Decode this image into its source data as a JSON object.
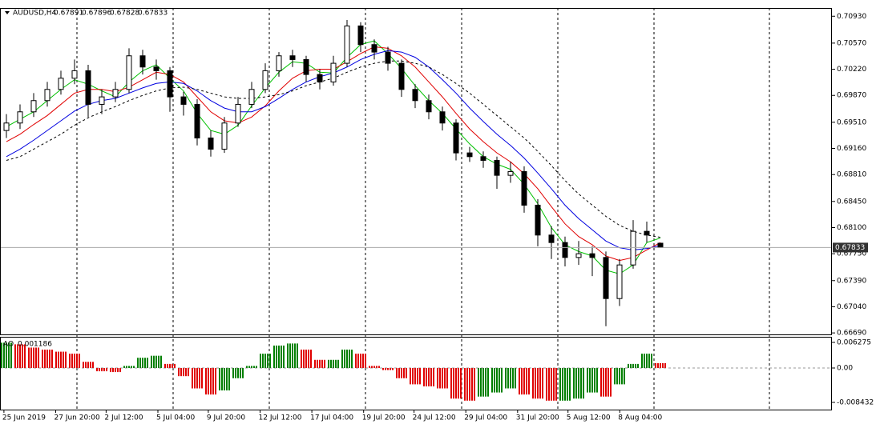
{
  "chart_data": {
    "type": "candlestick",
    "title": "AUDUSD,H4",
    "open": [
      0.694,
      0.695,
      0.6965,
      0.698,
      0.6995,
      0.701,
      0.702,
      0.6975,
      0.6985,
      0.6995,
      0.704,
      0.7025,
      0.702,
      0.6985,
      0.6975,
      0.693,
      0.6915,
      0.695,
      0.6975,
      0.6995,
      0.702,
      0.704,
      0.7035,
      0.7015,
      0.7005,
      0.703,
      0.708,
      0.7055,
      0.7045,
      0.703,
      0.6995,
      0.698,
      0.6965,
      0.695,
      0.691,
      0.6905,
      0.69,
      0.688,
      0.6885,
      0.684,
      0.68,
      0.679,
      0.677,
      0.6775,
      0.677,
      0.6715,
      0.676,
      0.6805,
      0.67891
    ],
    "high": [
      0.6962,
      0.6975,
      0.699,
      0.7005,
      0.702,
      0.7035,
      0.7028,
      0.6995,
      0.7005,
      0.705,
      0.7048,
      0.7035,
      0.7025,
      0.6992,
      0.6982,
      0.694,
      0.6958,
      0.6985,
      0.7005,
      0.703,
      0.7045,
      0.7048,
      0.704,
      0.7022,
      0.704,
      0.7088,
      0.7085,
      0.7062,
      0.7052,
      0.7035,
      0.7002,
      0.6988,
      0.6972,
      0.6955,
      0.6918,
      0.6912,
      0.6905,
      0.6898,
      0.6892,
      0.6848,
      0.6812,
      0.6798,
      0.6792,
      0.6785,
      0.6778,
      0.6768,
      0.682,
      0.6818,
      0.67896
    ],
    "low": [
      0.693,
      0.6942,
      0.6958,
      0.6972,
      0.6988,
      0.7002,
      0.6958,
      0.6962,
      0.6978,
      0.699,
      0.7015,
      0.7008,
      0.6965,
      0.696,
      0.692,
      0.6905,
      0.691,
      0.6945,
      0.697,
      0.699,
      0.7012,
      0.7025,
      0.7005,
      0.6995,
      0.7,
      0.7025,
      0.7045,
      0.7035,
      0.702,
      0.6985,
      0.697,
      0.6955,
      0.694,
      0.69,
      0.6898,
      0.689,
      0.6862,
      0.687,
      0.683,
      0.6785,
      0.6768,
      0.6758,
      0.676,
      0.6745,
      0.6678,
      0.6705,
      0.6755,
      0.679,
      0.67828
    ],
    "close": [
      0.695,
      0.6965,
      0.698,
      0.6995,
      0.701,
      0.702,
      0.6975,
      0.6985,
      0.6995,
      0.704,
      0.7025,
      0.702,
      0.6985,
      0.6975,
      0.693,
      0.6915,
      0.695,
      0.6975,
      0.6995,
      0.702,
      0.704,
      0.7035,
      0.7015,
      0.7005,
      0.703,
      0.708,
      0.7055,
      0.7045,
      0.703,
      0.6995,
      0.698,
      0.6965,
      0.695,
      0.691,
      0.6905,
      0.69,
      0.688,
      0.6885,
      0.684,
      0.68,
      0.679,
      0.677,
      0.6775,
      0.677,
      0.6715,
      0.676,
      0.6805,
      0.68,
      0.67833
    ],
    "series": [
      {
        "color": "#00c000",
        "dashed": false,
        "values": [
          0.6945,
          0.6955,
          0.6965,
          0.698,
          0.6995,
          0.7008,
          0.7002,
          0.6993,
          0.6985,
          0.7005,
          0.702,
          0.7028,
          0.701,
          0.6993,
          0.6963,
          0.694,
          0.6935,
          0.6947,
          0.6973,
          0.6997,
          0.7018,
          0.7032,
          0.703,
          0.7018,
          0.7017,
          0.7038,
          0.7055,
          0.706,
          0.7043,
          0.7023,
          0.7,
          0.698,
          0.6963,
          0.6942,
          0.6922,
          0.6905,
          0.6895,
          0.6888,
          0.6868,
          0.6842,
          0.681,
          0.6787,
          0.6778,
          0.6772,
          0.6753,
          0.6748,
          0.676,
          0.679,
          0.6796
        ]
      },
      {
        "color": "#e00000",
        "dashed": false,
        "values": [
          0.6925,
          0.6935,
          0.6948,
          0.696,
          0.6975,
          0.699,
          0.6995,
          0.6995,
          0.6992,
          0.6998,
          0.7008,
          0.7018,
          0.7015,
          0.7005,
          0.6985,
          0.6965,
          0.6953,
          0.695,
          0.6958,
          0.6973,
          0.6993,
          0.701,
          0.702,
          0.7022,
          0.7022,
          0.7032,
          0.7043,
          0.7052,
          0.705,
          0.704,
          0.7025,
          0.7005,
          0.6985,
          0.6963,
          0.6942,
          0.6925,
          0.691,
          0.6898,
          0.6882,
          0.6862,
          0.6838,
          0.6815,
          0.6798,
          0.6787,
          0.6772,
          0.6766,
          0.677,
          0.678,
          0.679
        ]
      },
      {
        "color": "#0000e0",
        "dashed": false,
        "values": [
          0.6905,
          0.6915,
          0.6927,
          0.694,
          0.6953,
          0.6966,
          0.6975,
          0.698,
          0.6983,
          0.699,
          0.6997,
          0.7003,
          0.7005,
          0.7003,
          0.6993,
          0.698,
          0.697,
          0.6965,
          0.6965,
          0.6972,
          0.6983,
          0.6995,
          0.7005,
          0.7012,
          0.7017,
          0.7025,
          0.7035,
          0.7042,
          0.7047,
          0.7045,
          0.7038,
          0.7025,
          0.7008,
          0.699,
          0.697,
          0.6952,
          0.6935,
          0.692,
          0.6903,
          0.6883,
          0.6862,
          0.684,
          0.6822,
          0.6807,
          0.6792,
          0.6783,
          0.678,
          0.6782,
          0.6786
        ]
      },
      {
        "color": "#000000",
        "dashed": true,
        "values": [
          0.69,
          0.6905,
          0.6915,
          0.6925,
          0.6935,
          0.6947,
          0.6957,
          0.6965,
          0.6972,
          0.698,
          0.6987,
          0.6993,
          0.6997,
          0.6998,
          0.6995,
          0.699,
          0.6985,
          0.6983,
          0.6983,
          0.6985,
          0.6988,
          0.6993,
          0.7,
          0.7005,
          0.701,
          0.7018,
          0.7025,
          0.703,
          0.7033,
          0.7033,
          0.703,
          0.7025,
          0.7015,
          0.7003,
          0.699,
          0.6975,
          0.696,
          0.6945,
          0.693,
          0.6912,
          0.6893,
          0.6873,
          0.6855,
          0.684,
          0.6825,
          0.6813,
          0.6805,
          0.68,
          0.6797
        ]
      }
    ],
    "ylim": [
      0.6667,
      0.7104
    ],
    "yticks": [
      {
        "value": 0.7093,
        "label": "0.70930"
      },
      {
        "value": 0.7057,
        "label": "0.70570"
      },
      {
        "value": 0.7022,
        "label": "0.70220"
      },
      {
        "value": 0.6987,
        "label": "0.69870"
      },
      {
        "value": 0.6951,
        "label": "0.69510"
      },
      {
        "value": 0.6916,
        "label": "0.69160"
      },
      {
        "value": 0.6881,
        "label": "0.68810"
      },
      {
        "value": 0.6845,
        "label": "0.68450"
      },
      {
        "value": 0.681,
        "label": "0.68100"
      },
      {
        "value": 0.6775,
        "label": "0.67750"
      },
      {
        "value": 0.6739,
        "label": "0.67390"
      },
      {
        "value": 0.6704,
        "label": "0.67040"
      },
      {
        "value": 0.6669,
        "label": "0.66690"
      }
    ],
    "xticks": [
      {
        "value": -0.3,
        "label": "25 Jun 2019"
      },
      {
        "value": 3.5,
        "label": "27 Jun 20:00"
      },
      {
        "value": 7.2,
        "label": "2 Jul 12:00"
      },
      {
        "value": 11,
        "label": "5 Jul 04:00"
      },
      {
        "value": 14.7,
        "label": "9 Jul 20:00"
      },
      {
        "value": 18.5,
        "label": "12 Jul 12:00"
      },
      {
        "value": 22.3,
        "label": "17 Jul 04:00"
      },
      {
        "value": 26.1,
        "label": "19 Jul 20:00"
      },
      {
        "value": 29.8,
        "label": "24 Jul 12:00"
      },
      {
        "value": 33.6,
        "label": "29 Jul 04:00"
      },
      {
        "value": 37.4,
        "label": "31 Jul 20:00"
      },
      {
        "value": 41.1,
        "label": "5 Aug 12:00"
      },
      {
        "value": 44.9,
        "label": "8 Aug 04:00"
      }
    ],
    "indicator": {
      "type": "bar",
      "name": "AO",
      "rise_color": "#008000",
      "fall_color": "#e00000",
      "values": [
        0.0062,
        0.0058,
        0.005,
        0.0045,
        0.004,
        0.0035,
        0.0015,
        -0.0008,
        -0.001,
        0.0005,
        0.0025,
        0.003,
        0.001,
        -0.002,
        -0.005,
        -0.0065,
        -0.0055,
        -0.0025,
        0.0005,
        0.0035,
        0.0055,
        0.006,
        0.0045,
        0.002,
        0.002,
        0.0045,
        0.0035,
        0.0005,
        -0.0005,
        -0.0025,
        -0.004,
        -0.0045,
        -0.005,
        -0.0075,
        -0.008,
        -0.007,
        -0.006,
        -0.005,
        -0.0065,
        -0.0075,
        -0.008,
        -0.008,
        -0.0075,
        -0.006,
        -0.007,
        -0.004,
        0.001,
        0.0035,
        0.001186
      ],
      "ylim": [
        -0.0102,
        0.00745
      ],
      "yticks": [
        0.006275,
        {
          "value": 0,
          "label": "0.00"
        },
        -0.008432
      ]
    }
  }
}
